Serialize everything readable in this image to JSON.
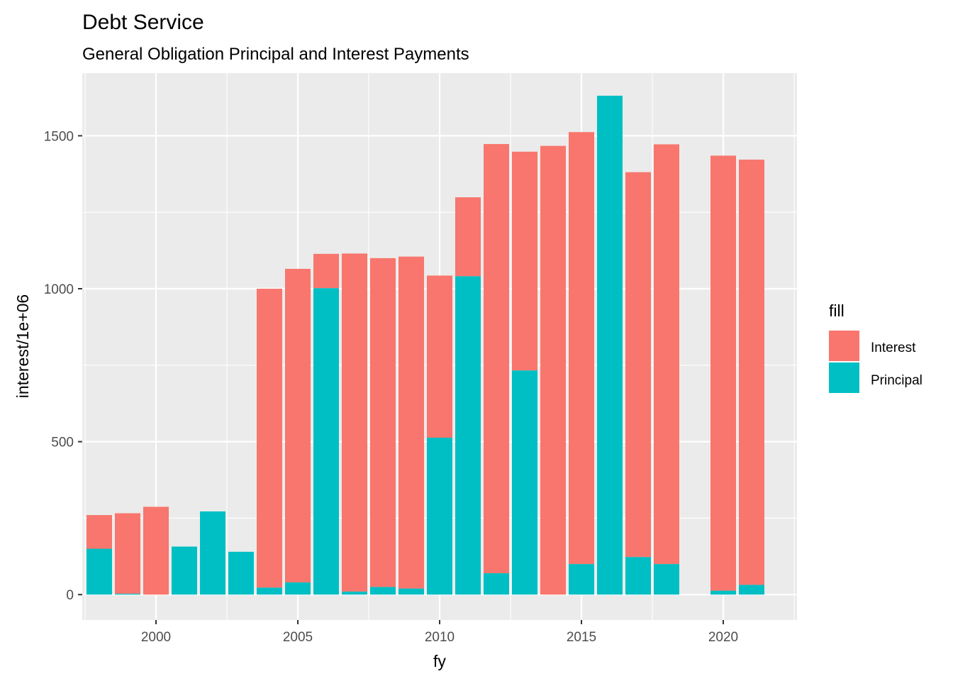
{
  "chart_data": {
    "type": "bar",
    "stacked": true,
    "title": "Debt Service",
    "subtitle": "General Obligation Principal and Interest Payments",
    "xlabel": "fy",
    "ylabel": "interest/1e+06",
    "xlim": [
      1997.4,
      2022.6
    ],
    "ylim": [
      -83,
      1705
    ],
    "x_ticks": [
      2000,
      2005,
      2010,
      2015,
      2020
    ],
    "x_tick_labels": [
      "2000",
      "2005",
      "2010",
      "2015",
      "2020"
    ],
    "y_ticks": [
      0,
      500,
      1000,
      1500
    ],
    "y_tick_labels": [
      "0",
      "500",
      "1000",
      "1500"
    ],
    "x": [
      1998,
      1999,
      2000,
      2001,
      2002,
      2003,
      2004,
      2005,
      2006,
      2007,
      2008,
      2009,
      2010,
      2011,
      2012,
      2013,
      2014,
      2015,
      2016,
      2017,
      2018,
      2019,
      2020,
      2021
    ],
    "series": [
      {
        "name": "Interest",
        "color": "#F8766D",
        "values": [
          110,
          263,
          287,
          0,
          0,
          0,
          977,
          1025,
          112,
          1105,
          1075,
          1085,
          530,
          258,
          1403,
          715,
          1467,
          1412,
          0,
          1258,
          1372,
          0,
          1422,
          1390
        ]
      },
      {
        "name": "Principal",
        "color": "#00BFC4",
        "values": [
          150,
          3,
          0,
          157,
          272,
          140,
          23,
          40,
          1002,
          10,
          25,
          20,
          513,
          1041,
          70,
          733,
          0,
          100,
          1631,
          123,
          100,
          0,
          13,
          32
        ]
      }
    ],
    "grid": true,
    "legend": {
      "title": "fill",
      "position": "right",
      "entries": [
        "Interest",
        "Principal"
      ]
    },
    "panel_background": "#EBEBEB",
    "grid_color": "#FFFFFF"
  }
}
